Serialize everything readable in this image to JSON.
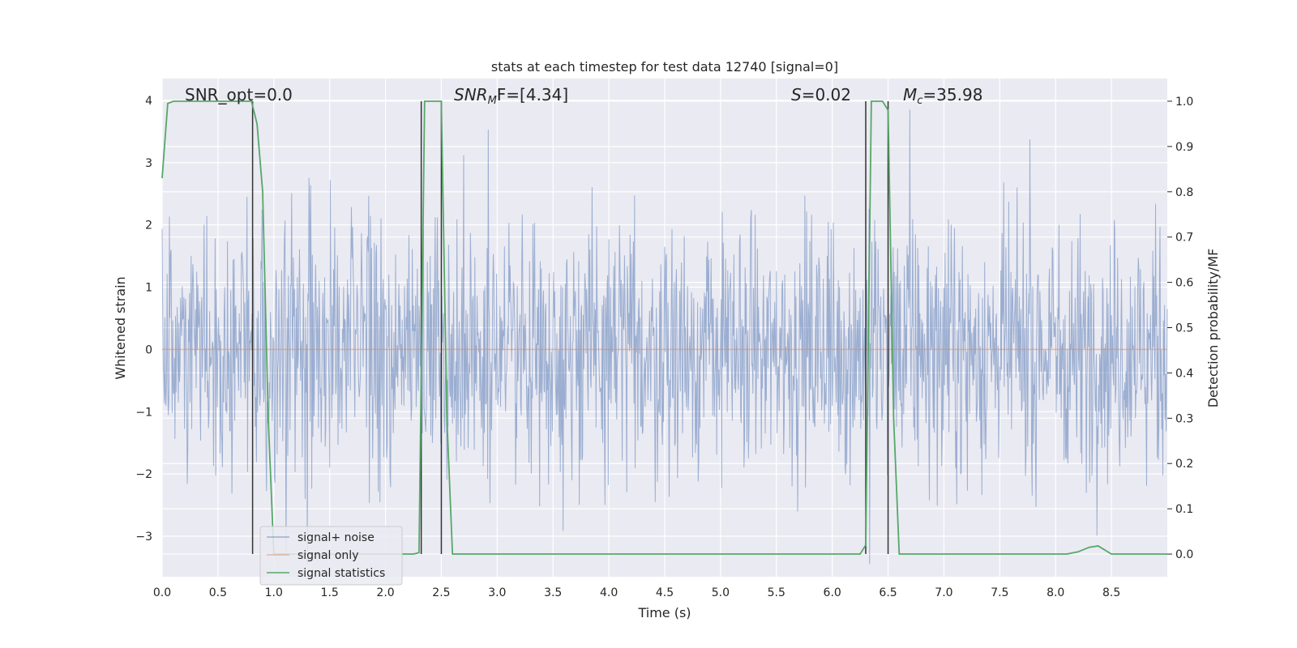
{
  "chart_data": {
    "type": "line",
    "title": "stats at each timestep for test data 12740 [signal=0]",
    "xlabel": "Time (s)",
    "ylabel_left": "Whitened strain",
    "ylabel_right": "Detection probability/MF",
    "xlim": [
      0.0,
      9.0
    ],
    "ylim_left": [
      -3.65,
      4.35
    ],
    "ylim_right": [
      -0.05,
      1.05
    ],
    "xticks": [
      "0.0",
      "0.5",
      "1.0",
      "1.5",
      "2.0",
      "2.5",
      "3.0",
      "3.5",
      "4.0",
      "4.5",
      "5.0",
      "5.5",
      "6.0",
      "6.5",
      "7.0",
      "7.5",
      "8.0",
      "8.5"
    ],
    "yticks_left": [
      "4",
      "3",
      "2",
      "1",
      "0",
      "−1",
      "−2",
      "−3"
    ],
    "yticks_right": [
      "1.0",
      "0.9",
      "0.8",
      "0.7",
      "0.6",
      "0.5",
      "0.4",
      "0.3",
      "0.2",
      "0.1",
      "0.0"
    ],
    "grid": true,
    "legend_position": "bottom-left",
    "annotations": {
      "snr_opt": "SNR_opt=0.0",
      "snr_mf_main": "SNR",
      "snr_mf_sub": "M",
      "snr_mf_tail": "F=[4.34]",
      "s_main": "S",
      "s_tail": "=0.02",
      "mc_main": "M",
      "mc_sub": "c",
      "mc_tail": "=35.98"
    },
    "series": [
      {
        "name": "signal+ noise",
        "color": "#4c72b0",
        "description": "whitened strain noise, sample range approximately -3.5 to 3.9"
      },
      {
        "name": "signal only",
        "color": "#dd8452",
        "x": [
          0.0,
          9.0
        ],
        "y": [
          0.0,
          0.0
        ]
      },
      {
        "name": "signal statistics",
        "color": "#55a868",
        "x": [
          0.0,
          0.05,
          0.1,
          0.8,
          0.85,
          0.9,
          0.95,
          1.0,
          1.1,
          2.0,
          2.25,
          2.3,
          2.35,
          2.4,
          2.5,
          2.55,
          2.6,
          6.0,
          6.25,
          6.3,
          6.35,
          6.45,
          6.5,
          6.55,
          6.6,
          6.7,
          7.6,
          8.1,
          8.2,
          8.3,
          8.38,
          8.5,
          9.0
        ],
        "y": [
          0.83,
          0.995,
          1.0,
          1.0,
          0.95,
          0.8,
          0.3,
          0.0,
          0.0,
          0.0,
          0.0,
          0.003,
          1.0,
          1.0,
          1.0,
          0.3,
          0.0,
          0.0,
          0.0,
          0.02,
          1.0,
          1.0,
          0.98,
          0.3,
          0.0,
          0.0,
          0.0,
          0.0,
          0.005,
          0.015,
          0.018,
          0.0,
          0.0
        ]
      }
    ],
    "vertical_markers_x": [
      0.81,
      2.32,
      2.5,
      6.3,
      6.5
    ]
  },
  "legend": {
    "noise_label": "signal+ noise",
    "signal_label": "signal only",
    "stats_label": "signal statistics"
  }
}
